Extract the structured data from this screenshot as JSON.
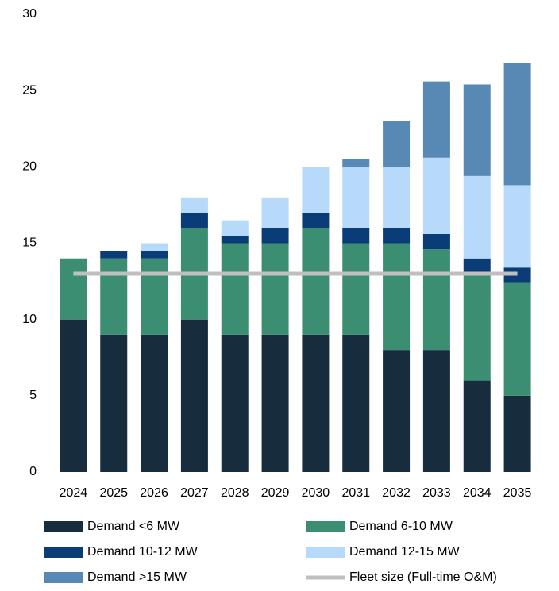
{
  "chart_data": {
    "type": "bar",
    "stacked": true,
    "categories": [
      "2024",
      "2025",
      "2026",
      "2027",
      "2028",
      "2029",
      "2030",
      "2031",
      "2032",
      "2033",
      "2034",
      "2035"
    ],
    "series": [
      {
        "name": "Demand <6 MW",
        "color": "#172d3e",
        "values": [
          10,
          9,
          9,
          10,
          9,
          9,
          9,
          9,
          8,
          8,
          6,
          5
        ]
      },
      {
        "name": "Demand 6-10 MW",
        "color": "#3c8e73",
        "values": [
          4,
          5,
          5,
          6,
          6,
          6,
          7,
          6,
          7,
          6.6,
          7,
          7.4
        ]
      },
      {
        "name": "Demand 10-12 MW",
        "color": "#0a3d78",
        "values": [
          0,
          0.5,
          0.5,
          1,
          0.5,
          1,
          1,
          1,
          1,
          1,
          1,
          1
        ]
      },
      {
        "name": "Demand 12-15 MW",
        "color": "#b7d9fa",
        "values": [
          0,
          0,
          0.5,
          1,
          1,
          2,
          3,
          4,
          4,
          5,
          5.4,
          5.4
        ]
      },
      {
        "name": "Demand >15 MW",
        "color": "#5889b4",
        "values": [
          0,
          0,
          0,
          0,
          0,
          0,
          0,
          0.5,
          3,
          5,
          6,
          8
        ]
      },
      {
        "name": "Fleet size (Full-time O&M)",
        "color": "#bfbfbf",
        "type": "line",
        "values": [
          13,
          13,
          13,
          13,
          13,
          13,
          13,
          13,
          13,
          13,
          13,
          13
        ]
      }
    ],
    "ylim": [
      0,
      30
    ],
    "yticks": [
      0,
      5,
      10,
      15,
      20,
      25,
      30
    ],
    "grid": false
  }
}
